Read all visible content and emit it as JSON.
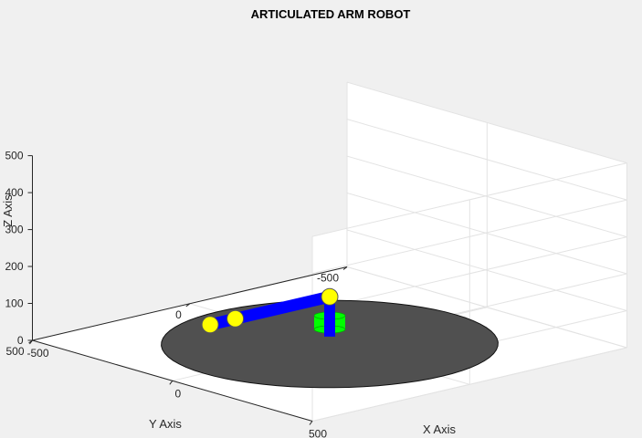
{
  "chart_data": {
    "type": "3d-plot",
    "title": "ARTICULATED ARM ROBOT",
    "xlabel": "X Axis",
    "ylabel": "Y Axis",
    "zlabel": "Z Axis",
    "xlim": [
      -500,
      500
    ],
    "ylim": [
      -500,
      500
    ],
    "zlim": [
      0,
      500
    ],
    "x_ticks": [
      "-500",
      "0",
      "500"
    ],
    "y_ticks": [
      "-500",
      "0",
      "500"
    ],
    "z_ticks": [
      "0",
      "100",
      "200",
      "300",
      "400",
      "500"
    ],
    "grid": true,
    "objects": [
      {
        "name": "base plate",
        "shape": "disc",
        "center": [
          0,
          0,
          0
        ],
        "radius": 400,
        "color": "#505050"
      },
      {
        "name": "base cylinder",
        "shape": "cylinder",
        "color": "#00ff00"
      },
      {
        "name": "link 1",
        "shape": "segment",
        "from": [
          0,
          0,
          20
        ],
        "to": [
          0,
          0,
          128
        ],
        "color": "#0000ff"
      },
      {
        "name": "link 2",
        "shape": "segment",
        "from": [
          0,
          0,
          128
        ],
        "to": [
          0,
          300,
          128
        ],
        "color": "#0000ff"
      },
      {
        "name": "link 3",
        "shape": "segment",
        "from": [
          0,
          300,
          128
        ],
        "to": [
          0,
          380,
          128
        ],
        "color": "#0000ff"
      }
    ],
    "joints": [
      {
        "name": "joint 1",
        "position": [
          0,
          0,
          128
        ],
        "color": "#ffff00"
      },
      {
        "name": "joint 2",
        "position": [
          0,
          300,
          128
        ],
        "color": "#ffff00"
      },
      {
        "name": "end effector",
        "position": [
          0,
          380,
          128
        ],
        "color": "#ffff00"
      }
    ]
  },
  "colors": {
    "background": "#f0f0f0",
    "axes_face": "#ffffff",
    "grid": "#e3e3e3",
    "axis_line": "#262626",
    "link": "#0000ff",
    "joint": "#ffff00",
    "base_cylinder": "#00ff00",
    "base_plate": "#505050"
  }
}
